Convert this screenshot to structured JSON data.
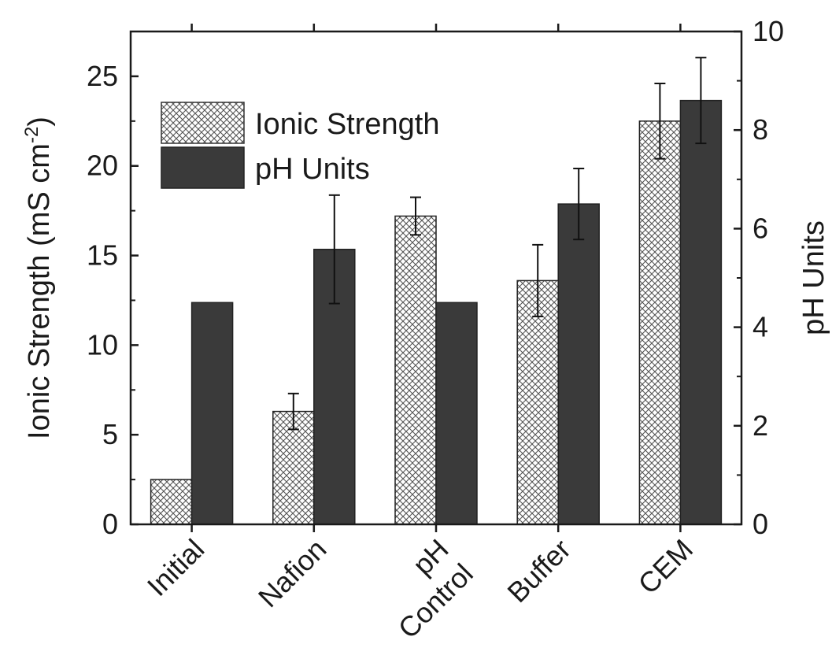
{
  "chart_data": {
    "type": "bar",
    "categories": [
      [
        "Initial"
      ],
      [
        "Nafion"
      ],
      [
        "pH",
        "Control"
      ],
      [
        "Buffer"
      ],
      [
        "CEM"
      ]
    ],
    "series": [
      {
        "name": "Ionic Strength",
        "axis": "left",
        "pattern": "crosshatch",
        "values": [
          2.5,
          6.3,
          17.2,
          13.6,
          22.5
        ],
        "errors": [
          null,
          1.0,
          1.05,
          2.0,
          2.1
        ]
      },
      {
        "name": "pH Units",
        "axis": "right",
        "color": "#3a3a3a",
        "values": [
          4.5,
          5.58,
          4.5,
          6.5,
          8.6
        ],
        "errors": [
          null,
          1.1,
          null,
          0.72,
          0.87
        ]
      }
    ],
    "y_left": {
      "label_main": "Ionic Strength (mS cm",
      "label_sup": "-2",
      "label_end": ")",
      "ylim": [
        0,
        27.5
      ],
      "ticks": [
        "0",
        "5",
        "10",
        "15",
        "20",
        "25"
      ],
      "tick_values": [
        0,
        5,
        10,
        15,
        20,
        25
      ]
    },
    "y_right": {
      "label": "pH Units",
      "ylim": [
        0,
        10
      ],
      "ticks": [
        "0",
        "2",
        "4",
        "6",
        "8",
        "10"
      ],
      "tick_values": [
        0,
        2,
        4,
        6,
        8,
        10
      ]
    },
    "legend_position": "top-left",
    "grid": false
  }
}
